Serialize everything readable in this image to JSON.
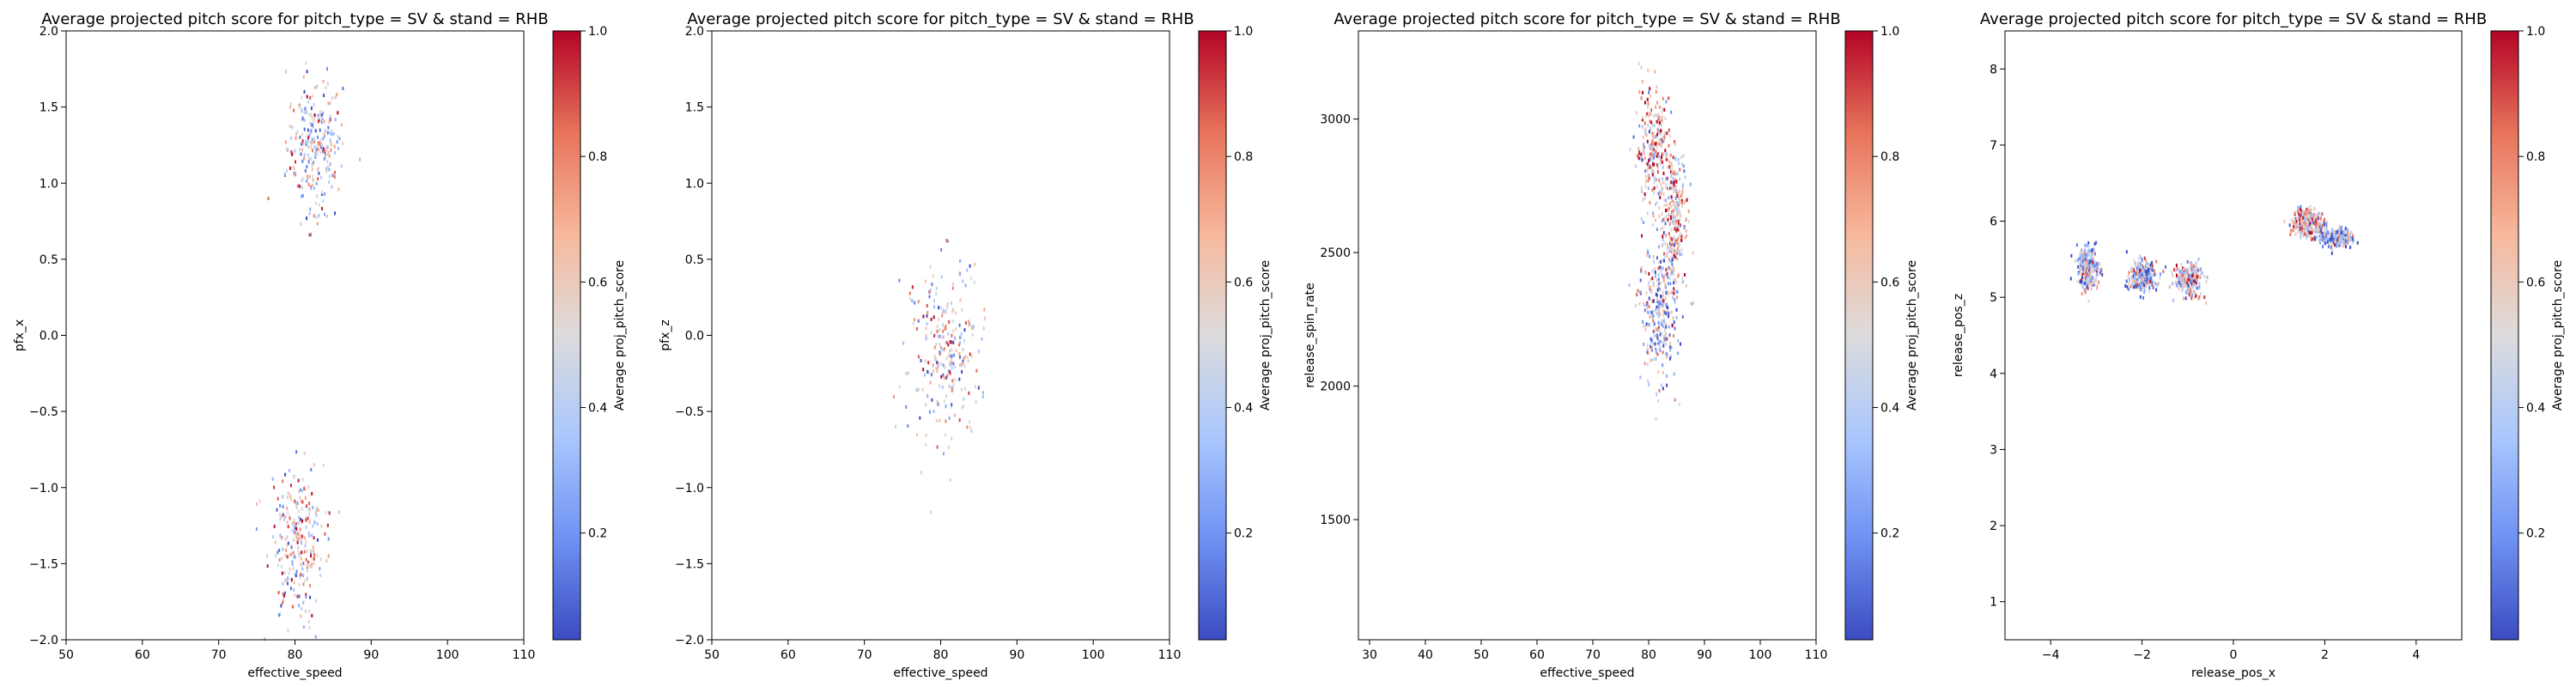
{
  "colors": {
    "scale": [
      "#3b4cc0",
      "#6f92f3",
      "#aac7fd",
      "#dddcdc",
      "#f7b89c",
      "#e7745b",
      "#b40426"
    ],
    "axis": "#000000",
    "background": "#ffffff"
  },
  "chart_data": [
    {
      "type": "scatter",
      "title": "Average projected pitch score for pitch_type = SV & stand = RHB",
      "xlabel": "effective_speed",
      "ylabel": "pfx_x",
      "xlim": [
        50,
        110
      ],
      "ylim": [
        -2.0,
        2.0
      ],
      "xticks": [
        50,
        60,
        70,
        80,
        90,
        100,
        110
      ],
      "xtick_labels": [
        "50",
        "60",
        "70",
        "80",
        "90",
        "100",
        "110"
      ],
      "yticks": [
        -2.0,
        -1.5,
        -1.0,
        -0.5,
        0.0,
        0.5,
        1.0,
        1.5,
        2.0
      ],
      "ytick_labels": [
        "−2.0",
        "−1.5",
        "−1.0",
        "−0.5",
        "0.0",
        "0.5",
        "1.0",
        "1.5",
        "2.0"
      ],
      "colorbar": {
        "label": "Average proj_pitch_score",
        "range": [
          0.03,
          1.0
        ],
        "ticks": [
          0.2,
          0.4,
          0.6,
          0.8,
          1.0
        ],
        "tick_labels": [
          "0.2",
          "0.4",
          "0.6",
          "0.8",
          "1.0"
        ]
      },
      "clusters": [
        {
          "x_center": 82.5,
          "x_sd": 1.8,
          "y_center": 1.25,
          "y_sd": 0.22,
          "mean_score": 0.45
        },
        {
          "x_center": 80.0,
          "x_sd": 1.8,
          "y_center": -1.35,
          "y_sd": 0.25,
          "mean_score": 0.55
        }
      ]
    },
    {
      "type": "scatter",
      "title": "Average projected pitch score for pitch_type = SV & stand = RHB",
      "xlabel": "effective_speed",
      "ylabel": "pfx_z",
      "xlim": [
        50,
        110
      ],
      "ylim": [
        -2.0,
        2.0
      ],
      "xticks": [
        50,
        60,
        70,
        80,
        90,
        100,
        110
      ],
      "xtick_labels": [
        "50",
        "60",
        "70",
        "80",
        "90",
        "100",
        "110"
      ],
      "yticks": [
        -2.0,
        -1.5,
        -1.0,
        -0.5,
        0.0,
        0.5,
        1.0,
        1.5,
        2.0
      ],
      "ytick_labels": [
        "−2.0",
        "−1.5",
        "−1.0",
        "−0.5",
        "0.0",
        "0.5",
        "1.0",
        "1.5",
        "2.0"
      ],
      "colorbar": {
        "label": "Average proj_pitch_score",
        "range": [
          0.03,
          1.0
        ],
        "ticks": [
          0.2,
          0.4,
          0.6,
          0.8,
          1.0
        ],
        "tick_labels": [
          "0.2",
          "0.4",
          "0.6",
          "0.8",
          "1.0"
        ]
      },
      "clusters": [
        {
          "x_center": 80.5,
          "x_sd": 2.3,
          "y_center": -0.1,
          "y_sd": 0.28,
          "mean_score": 0.5
        }
      ]
    },
    {
      "type": "scatter",
      "title": "Average projected pitch score for pitch_type = SV & stand = RHB",
      "xlabel": "effective_speed",
      "ylabel": "release_spin_rate",
      "xlim": [
        28,
        110
      ],
      "ylim": [
        1050,
        3330
      ],
      "xticks": [
        30,
        40,
        50,
        60,
        70,
        80,
        90,
        100,
        110
      ],
      "xtick_labels": [
        "30",
        "40",
        "50",
        "60",
        "70",
        "80",
        "90",
        "100",
        "110"
      ],
      "yticks": [
        1500,
        2000,
        2500,
        3000
      ],
      "ytick_labels": [
        "1500",
        "2000",
        "2500",
        "3000"
      ],
      "colorbar": {
        "label": "Average proj_pitch_score",
        "range": [
          0.03,
          1.0
        ],
        "ticks": [
          0.2,
          0.4,
          0.6,
          0.8,
          1.0
        ],
        "tick_labels": [
          "0.2",
          "0.4",
          "0.6",
          "0.8",
          "1.0"
        ]
      },
      "clusters": [
        {
          "x_center": 80.5,
          "x_sd": 1.6,
          "y_center": 2900,
          "y_sd": 110,
          "mean_score": 0.62
        },
        {
          "x_center": 84.5,
          "x_sd": 1.2,
          "y_center": 2620,
          "y_sd": 140,
          "mean_score": 0.6
        },
        {
          "x_center": 81.5,
          "x_sd": 1.7,
          "y_center": 2270,
          "y_sd": 130,
          "mean_score": 0.35
        }
      ]
    },
    {
      "type": "scatter",
      "title": "Average projected pitch score for pitch_type = SV & stand = RHB",
      "xlabel": "release_pos_x",
      "ylabel": "release_pos_z",
      "xlim": [
        -5,
        5
      ],
      "ylim": [
        0.5,
        8.5
      ],
      "xticks": [
        -4,
        -2,
        0,
        2,
        4
      ],
      "xtick_labels": [
        "−4",
        "−2",
        "0",
        "2",
        "4"
      ],
      "yticks": [
        1,
        2,
        3,
        4,
        5,
        6,
        7,
        8
      ],
      "ytick_labels": [
        "1",
        "2",
        "3",
        "4",
        "5",
        "6",
        "7",
        "8"
      ],
      "colorbar": {
        "label": "Average proj_pitch_score",
        "range": [
          0.03,
          1.0
        ],
        "ticks": [
          0.2,
          0.4,
          0.6,
          0.8,
          1.0
        ],
        "tick_labels": [
          "0.2",
          "0.4",
          "0.6",
          "0.8",
          "1.0"
        ]
      },
      "clusters": [
        {
          "x_center": -3.2,
          "x_sd": 0.12,
          "y_center": 5.4,
          "y_sd": 0.14,
          "mean_score": 0.4
        },
        {
          "x_center": -2.0,
          "x_sd": 0.15,
          "y_center": 5.3,
          "y_sd": 0.1,
          "mean_score": 0.35
        },
        {
          "x_center": -1.0,
          "x_sd": 0.15,
          "y_center": 5.25,
          "y_sd": 0.1,
          "mean_score": 0.5
        },
        {
          "x_center": 1.6,
          "x_sd": 0.17,
          "y_center": 6.0,
          "y_sd": 0.09,
          "mean_score": 0.65
        },
        {
          "x_center": 2.2,
          "x_sd": 0.18,
          "y_center": 5.8,
          "y_sd": 0.06,
          "mean_score": 0.3
        }
      ]
    }
  ]
}
